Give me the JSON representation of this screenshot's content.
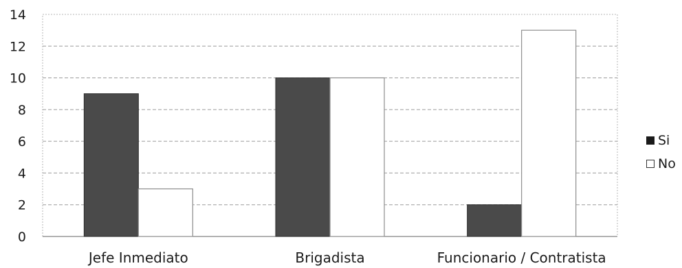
{
  "chart_data": {
    "type": "bar",
    "title": "",
    "xlabel": "",
    "ylabel": "",
    "categories": [
      "Jefe Inmediato",
      "Brigadista",
      "Funcionario / Contratista"
    ],
    "series": [
      {
        "name": "Si",
        "values": [
          9,
          10,
          2
        ],
        "color": "#4a4a4a"
      },
      {
        "name": "No",
        "values": [
          3,
          10,
          13
        ],
        "color": "#ffffff"
      }
    ],
    "ylim": [
      0,
      14
    ],
    "yticks": [
      0,
      2,
      4,
      6,
      8,
      10,
      12,
      14
    ],
    "grid": true,
    "legend_position": "right"
  }
}
